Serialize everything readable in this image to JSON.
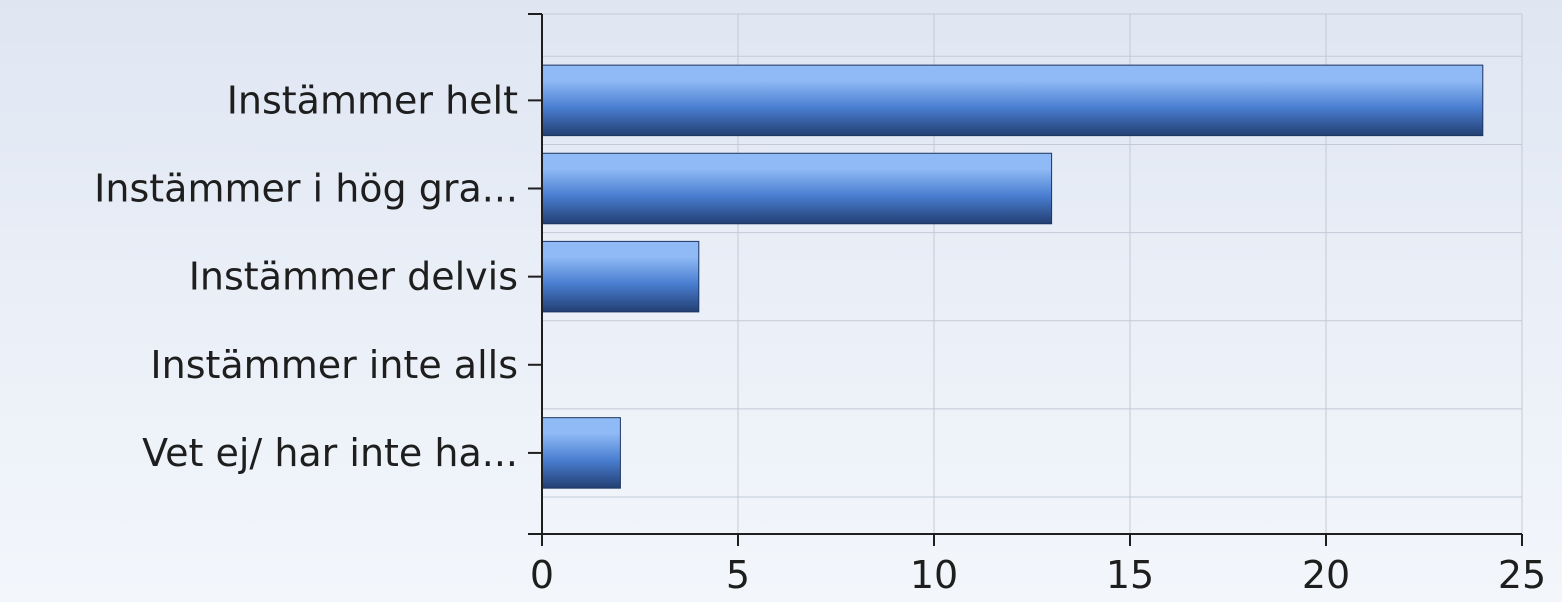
{
  "chart_data": {
    "type": "bar",
    "orientation": "horizontal",
    "categories": [
      "Instämmer helt",
      "Instämmer i hög gra...",
      "Instämmer delvis",
      "Instämmer inte alls",
      "Vet ej/ har inte ha..."
    ],
    "values": [
      24,
      13,
      4,
      0,
      2
    ],
    "xlim": [
      0,
      25
    ],
    "xticks": [
      "0",
      "5",
      "10",
      "15",
      "20",
      "25"
    ],
    "grid": true,
    "legend": "none",
    "colors": {
      "bar_top": "#8fbaf5",
      "bar_mid": "#4a7ed1",
      "bar_bottom": "#233f73",
      "grid": "#c3cad6",
      "axis": "#1e1e1e"
    }
  }
}
